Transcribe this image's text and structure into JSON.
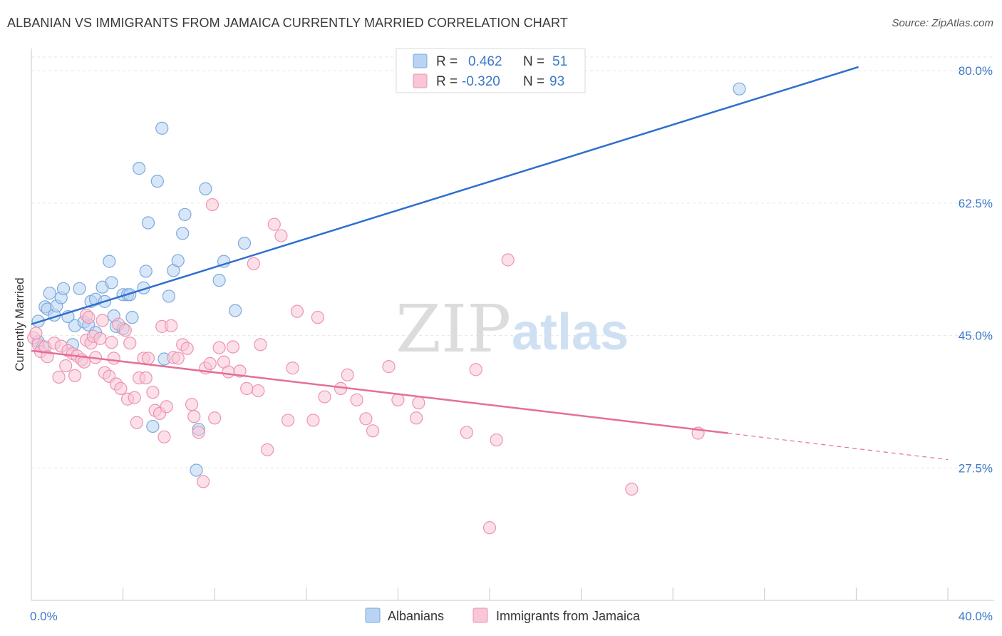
{
  "title": "ALBANIAN VS IMMIGRANTS FROM JAMAICA CURRENTLY MARRIED CORRELATION CHART",
  "source": "Source: ZipAtlas.com",
  "watermark": {
    "zip": "ZIP",
    "atlas": "atlas"
  },
  "colors": {
    "blue_fill": "#b8d3f3",
    "blue_stroke": "#7aa9de",
    "blue_line": "#2f6fcf",
    "pink_fill": "#f8c6d6",
    "pink_stroke": "#ee93b1",
    "pink_line": "#e46f99",
    "tick_text": "#3b78c8",
    "grid": "#e6e6e6"
  },
  "legend": {
    "rows": [
      {
        "r_label": "R =",
        "r_value": "0.462",
        "n_label": "N =",
        "n_value": "51"
      },
      {
        "r_label": "R =",
        "r_value": "-0.320",
        "n_label": "N =",
        "n_value": "93"
      }
    ]
  },
  "chart_data": {
    "type": "scatter",
    "title": "ALBANIAN VS IMMIGRANTS FROM JAMAICA CURRENTLY MARRIED CORRELATION CHART",
    "xlabel": "",
    "ylabel": "Currently Married",
    "xlim": [
      0,
      40
    ],
    "ylim": [
      10,
      82
    ],
    "x_tick_labels": [
      {
        "value": 0,
        "label": "0.0%"
      },
      {
        "value": 40,
        "label": "40.0%"
      }
    ],
    "y_tick_labels": [
      {
        "value": 27.5,
        "label": "27.5%"
      },
      {
        "value": 45.0,
        "label": "45.0%"
      },
      {
        "value": 62.5,
        "label": "62.5%"
      },
      {
        "value": 80.0,
        "label": "80.0%"
      }
    ],
    "grid": true,
    "legend_position": "top-center",
    "series": [
      {
        "name": "Albanians",
        "color": "#b8d3f3",
        "trend": {
          "x": [
            0,
            36.1
          ],
          "y": [
            46.5,
            80.5
          ]
        },
        "points": [
          [
            0.3,
            46.9
          ],
          [
            0.3,
            44.2
          ],
          [
            0.5,
            43.5
          ],
          [
            0.6,
            48.8
          ],
          [
            0.7,
            48.5
          ],
          [
            0.8,
            50.6
          ],
          [
            1.0,
            47.7
          ],
          [
            1.1,
            48.9
          ],
          [
            1.3,
            50.0
          ],
          [
            1.4,
            51.2
          ],
          [
            1.6,
            47.5
          ],
          [
            1.8,
            43.8
          ],
          [
            1.9,
            46.3
          ],
          [
            2.1,
            51.2
          ],
          [
            2.3,
            46.8
          ],
          [
            2.5,
            46.4
          ],
          [
            2.6,
            49.5
          ],
          [
            2.8,
            45.4
          ],
          [
            2.8,
            49.8
          ],
          [
            3.1,
            51.4
          ],
          [
            3.2,
            49.5
          ],
          [
            3.4,
            54.8
          ],
          [
            3.5,
            52.0
          ],
          [
            3.6,
            47.6
          ],
          [
            3.7,
            46.2
          ],
          [
            4.0,
            45.9
          ],
          [
            4.0,
            50.4
          ],
          [
            4.2,
            50.4
          ],
          [
            4.3,
            50.4
          ],
          [
            4.4,
            47.4
          ],
          [
            4.7,
            67.1
          ],
          [
            4.9,
            51.3
          ],
          [
            5.0,
            53.5
          ],
          [
            5.1,
            59.9
          ],
          [
            5.3,
            33.0
          ],
          [
            5.5,
            65.4
          ],
          [
            5.7,
            72.4
          ],
          [
            5.8,
            41.9
          ],
          [
            6.0,
            50.2
          ],
          [
            6.2,
            53.6
          ],
          [
            6.4,
            54.9
          ],
          [
            6.6,
            58.5
          ],
          [
            6.7,
            61.0
          ],
          [
            7.2,
            27.2
          ],
          [
            7.3,
            32.6
          ],
          [
            7.6,
            64.4
          ],
          [
            8.2,
            52.3
          ],
          [
            8.4,
            54.8
          ],
          [
            8.9,
            48.3
          ],
          [
            9.3,
            57.2
          ],
          [
            30.9,
            77.6
          ]
        ]
      },
      {
        "name": "Immigrants from Jamaica",
        "color": "#f8c6d6",
        "trend": {
          "x": [
            0,
            30.4
          ],
          "y": [
            43.0,
            32.1
          ]
        },
        "trend_dashed": {
          "x": [
            30.4,
            40.0
          ],
          "y": [
            32.1,
            28.6
          ]
        },
        "points": [
          [
            0.1,
            44.7
          ],
          [
            0.2,
            45.3
          ],
          [
            0.3,
            43.8
          ],
          [
            0.4,
            42.9
          ],
          [
            0.6,
            43.5
          ],
          [
            0.7,
            42.2
          ],
          [
            1.0,
            44.0
          ],
          [
            1.2,
            39.5
          ],
          [
            1.3,
            43.6
          ],
          [
            1.5,
            41.0
          ],
          [
            1.6,
            43.0
          ],
          [
            1.8,
            42.6
          ],
          [
            1.9,
            39.7
          ],
          [
            2.0,
            42.3
          ],
          [
            2.2,
            41.8
          ],
          [
            2.3,
            41.5
          ],
          [
            2.4,
            44.4
          ],
          [
            2.4,
            47.7
          ],
          [
            2.5,
            47.4
          ],
          [
            2.6,
            44.0
          ],
          [
            2.7,
            44.9
          ],
          [
            2.8,
            42.1
          ],
          [
            3.0,
            44.6
          ],
          [
            3.1,
            47.0
          ],
          [
            3.2,
            40.1
          ],
          [
            3.4,
            39.6
          ],
          [
            3.5,
            44.1
          ],
          [
            3.6,
            42.0
          ],
          [
            3.7,
            38.6
          ],
          [
            3.8,
            46.5
          ],
          [
            3.9,
            38.0
          ],
          [
            4.1,
            45.7
          ],
          [
            4.2,
            36.6
          ],
          [
            4.3,
            44.0
          ],
          [
            4.5,
            36.8
          ],
          [
            4.6,
            33.5
          ],
          [
            4.7,
            39.4
          ],
          [
            4.9,
            42.0
          ],
          [
            5.0,
            39.4
          ],
          [
            5.1,
            42.0
          ],
          [
            5.3,
            37.5
          ],
          [
            5.4,
            35.1
          ],
          [
            5.6,
            34.7
          ],
          [
            5.7,
            46.2
          ],
          [
            5.8,
            31.6
          ],
          [
            5.9,
            35.6
          ],
          [
            6.1,
            46.3
          ],
          [
            6.2,
            42.1
          ],
          [
            6.4,
            42.0
          ],
          [
            6.6,
            43.8
          ],
          [
            6.8,
            43.3
          ],
          [
            7.0,
            35.9
          ],
          [
            7.1,
            34.3
          ],
          [
            7.3,
            32.2
          ],
          [
            7.5,
            25.7
          ],
          [
            7.6,
            40.7
          ],
          [
            7.8,
            41.3
          ],
          [
            7.9,
            62.3
          ],
          [
            8.0,
            34.1
          ],
          [
            8.2,
            43.4
          ],
          [
            8.4,
            41.5
          ],
          [
            8.6,
            40.2
          ],
          [
            8.8,
            43.5
          ],
          [
            9.1,
            40.3
          ],
          [
            9.4,
            38.0
          ],
          [
            9.7,
            54.5
          ],
          [
            9.9,
            37.7
          ],
          [
            10.0,
            43.8
          ],
          [
            10.3,
            29.9
          ],
          [
            10.6,
            59.7
          ],
          [
            10.9,
            58.2
          ],
          [
            11.2,
            33.8
          ],
          [
            11.4,
            40.7
          ],
          [
            11.6,
            48.2
          ],
          [
            12.3,
            33.8
          ],
          [
            12.5,
            47.4
          ],
          [
            12.8,
            36.9
          ],
          [
            13.5,
            38.0
          ],
          [
            13.8,
            39.8
          ],
          [
            14.2,
            36.5
          ],
          [
            14.6,
            34.0
          ],
          [
            14.9,
            32.4
          ],
          [
            15.6,
            40.9
          ],
          [
            16.0,
            36.5
          ],
          [
            16.8,
            34.1
          ],
          [
            16.9,
            36.1
          ],
          [
            19.0,
            32.2
          ],
          [
            19.4,
            40.5
          ],
          [
            20.0,
            19.6
          ],
          [
            20.3,
            31.2
          ],
          [
            20.8,
            55.0
          ],
          [
            26.2,
            24.7
          ],
          [
            29.1,
            32.1
          ]
        ]
      }
    ]
  },
  "bottom_legend": [
    {
      "label": "Albanians"
    },
    {
      "label": "Immigrants from Jamaica"
    }
  ]
}
